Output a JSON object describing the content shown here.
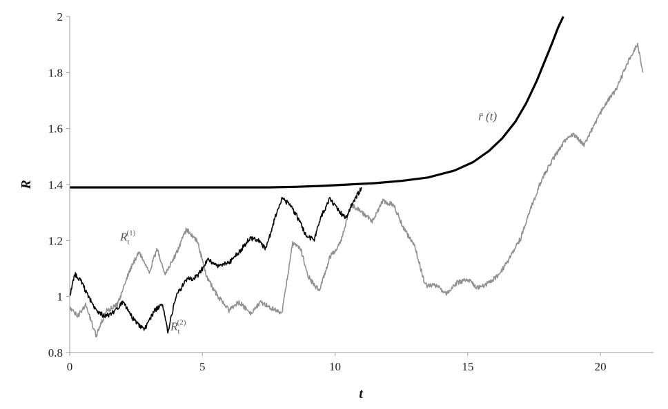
{
  "chart_data": {
    "type": "line",
    "title": "",
    "xlabel": "t",
    "ylabel": "R",
    "xlim": [
      0,
      22
    ],
    "ylim": [
      0.8,
      2.0
    ],
    "xticks": [
      "0",
      "5",
      "10",
      "15",
      "20"
    ],
    "yticks": [
      "0.8",
      "1",
      "1.2",
      "1.4",
      "1.6",
      "1.8",
      "2"
    ],
    "grid": false,
    "legend": "none",
    "annotations": [
      {
        "id": "r1",
        "base": "R",
        "sub": "t",
        "sup": "(1)",
        "x": 1.9,
        "y": 1.2
      },
      {
        "id": "r2",
        "base": "R",
        "sub": "t",
        "sup": "(2)",
        "x": 3.8,
        "y": 0.88
      },
      {
        "id": "rbar",
        "base": "r̄ (t)",
        "x": 15.4,
        "y": 1.63
      }
    ],
    "series": [
      {
        "id": "rbar",
        "color": "#000000",
        "width": 3.2,
        "x": [
          0,
          2,
          4,
          6,
          7.5,
          8.5,
          9.5,
          10.5,
          11.5,
          12.5,
          13.5,
          14.5,
          15.2,
          15.8,
          16.3,
          16.8,
          17.2,
          17.6,
          17.9,
          18.2,
          18.4,
          18.6
        ],
        "y": [
          1.39,
          1.39,
          1.39,
          1.39,
          1.39,
          1.392,
          1.395,
          1.4,
          1.405,
          1.413,
          1.425,
          1.45,
          1.48,
          1.52,
          1.565,
          1.625,
          1.69,
          1.77,
          1.84,
          1.91,
          1.96,
          2.0
        ]
      },
      {
        "id": "r2",
        "color": "#000000",
        "width": 1.6,
        "x": [
          0,
          0.2,
          0.4,
          0.7,
          1.0,
          1.3,
          1.6,
          2.0,
          2.4,
          2.8,
          3.2,
          3.5,
          3.7,
          4.0,
          4.4,
          4.8,
          5.2,
          5.6,
          6.0,
          6.4,
          6.8,
          7.1,
          7.4,
          7.7,
          8.0,
          8.3,
          8.6,
          8.9,
          9.2,
          9.5,
          9.8,
          10.1,
          10.4,
          10.7,
          11.0
        ],
        "y": [
          1.0,
          1.08,
          1.06,
          1.0,
          0.95,
          0.93,
          0.94,
          0.98,
          0.92,
          0.88,
          0.95,
          0.97,
          0.87,
          1.0,
          1.06,
          1.07,
          1.13,
          1.11,
          1.12,
          1.16,
          1.21,
          1.2,
          1.17,
          1.27,
          1.35,
          1.33,
          1.28,
          1.22,
          1.2,
          1.29,
          1.35,
          1.31,
          1.28,
          1.34,
          1.39
        ]
      },
      {
        "id": "r1",
        "color": "#909090",
        "width": 1.6,
        "x": [
          0,
          0.3,
          0.6,
          1.0,
          1.4,
          1.8,
          2.2,
          2.6,
          3.0,
          3.3,
          3.6,
          4.0,
          4.4,
          4.8,
          5.2,
          5.6,
          6.0,
          6.4,
          6.8,
          7.2,
          7.6,
          8.0,
          8.4,
          8.7,
          9.0,
          9.4,
          9.8,
          10.2,
          10.6,
          11.0,
          11.4,
          11.8,
          12.2,
          12.6,
          13.0,
          13.4,
          13.8,
          14.2,
          14.6,
          15.0,
          15.4,
          15.8,
          16.2,
          16.6,
          17.0,
          17.4,
          17.8,
          18.2,
          18.6,
          19.0,
          19.4,
          19.8,
          20.2,
          20.6,
          21.0,
          21.4,
          21.6
        ],
        "y": [
          0.96,
          0.93,
          0.97,
          0.86,
          0.95,
          0.97,
          1.08,
          1.16,
          1.09,
          1.17,
          1.08,
          1.15,
          1.24,
          1.2,
          1.06,
          1.0,
          0.95,
          0.98,
          0.94,
          0.98,
          0.96,
          0.94,
          1.19,
          1.17,
          1.07,
          1.02,
          1.14,
          1.19,
          1.33,
          1.3,
          1.27,
          1.34,
          1.33,
          1.24,
          1.18,
          1.04,
          1.04,
          1.01,
          1.05,
          1.06,
          1.03,
          1.05,
          1.08,
          1.14,
          1.21,
          1.32,
          1.42,
          1.49,
          1.55,
          1.58,
          1.54,
          1.62,
          1.69,
          1.74,
          1.83,
          1.9,
          1.8
        ]
      }
    ]
  }
}
